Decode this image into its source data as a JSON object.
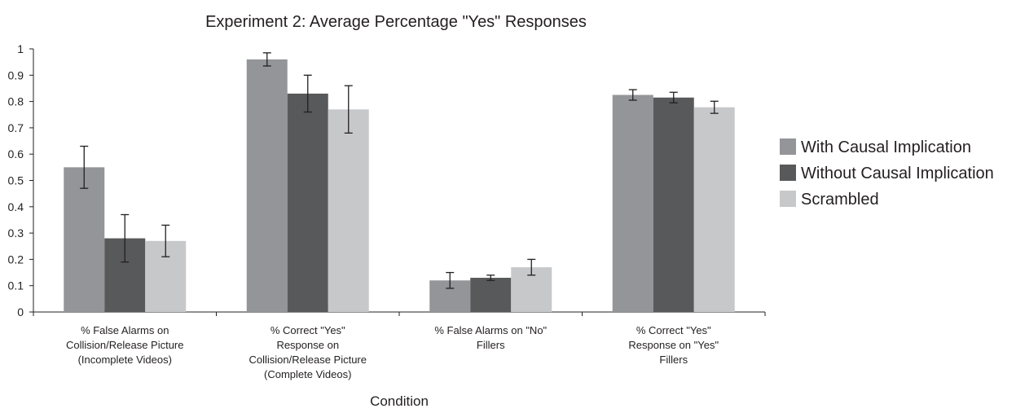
{
  "chart_data": {
    "type": "bar",
    "title": "Experiment 2: Average Percentage \"Yes\" Responses",
    "xlabel": "Condition",
    "ylabel": "",
    "ylim": [
      0,
      1
    ],
    "yticks": [
      "0",
      "0.1",
      "0.2",
      "0.3",
      "0.4",
      "0.5",
      "0.6",
      "0.7",
      "0.8",
      "0.9",
      "1"
    ],
    "categories": [
      [
        "% False Alarms on",
        "Collision/Release Picture",
        "(Incomplete Videos)"
      ],
      [
        "% Correct \"Yes\"",
        "Response on",
        "Collision/Release Picture",
        "(Complete Videos)"
      ],
      [
        "% False Alarms on \"No\"",
        "Fillers"
      ],
      [
        "% Correct \"Yes\"",
        "Response on \"Yes\"",
        "Fillers"
      ]
    ],
    "series": [
      {
        "name": "With Causal Implication",
        "color": "#939598",
        "values": [
          0.55,
          0.96,
          0.12,
          0.825
        ],
        "errors": [
          0.08,
          0.025,
          0.03,
          0.02
        ]
      },
      {
        "name": "Without Causal Implication",
        "color": "#58595b",
        "values": [
          0.28,
          0.83,
          0.13,
          0.815
        ],
        "errors": [
          0.09,
          0.07,
          0.01,
          0.02
        ]
      },
      {
        "name": "Scrambled",
        "color": "#c7c8ca",
        "values": [
          0.27,
          0.77,
          0.17,
          0.778
        ],
        "errors": [
          0.06,
          0.09,
          0.03,
          0.023
        ]
      }
    ],
    "error_bars": true,
    "grid": false,
    "legend_position": "right"
  }
}
